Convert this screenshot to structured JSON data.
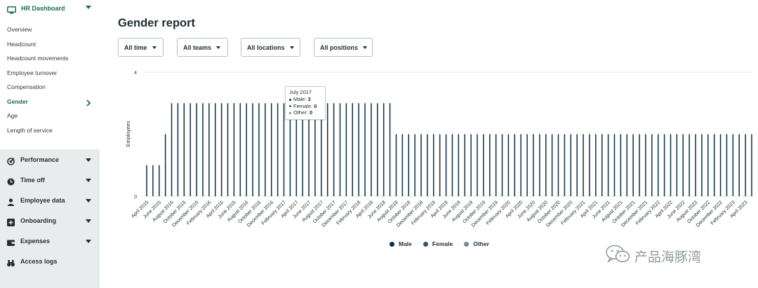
{
  "sidebar": {
    "header": {
      "label": "HR Dashboard",
      "icon": "monitor-icon"
    },
    "subitems": [
      {
        "label": "Overview",
        "active": false
      },
      {
        "label": "Headcount",
        "active": false
      },
      {
        "label": "Headcount movements",
        "active": false
      },
      {
        "label": "Employee turnover",
        "active": false
      },
      {
        "label": "Compensation",
        "active": false
      },
      {
        "label": "Gender",
        "active": true
      },
      {
        "label": "Age",
        "active": false
      },
      {
        "label": "Length of service",
        "active": false
      }
    ],
    "sections": [
      {
        "label": "Performance",
        "icon": "target-icon"
      },
      {
        "label": "Time off",
        "icon": "clock-icon"
      },
      {
        "label": "Employee data",
        "icon": "person-icon"
      },
      {
        "label": "Onboarding",
        "icon": "plus-square-icon"
      },
      {
        "label": "Expenses",
        "icon": "wallet-icon"
      },
      {
        "label": "Access logs",
        "icon": "binoculars-icon"
      }
    ]
  },
  "main": {
    "title": "Gender report",
    "filters": [
      "All time",
      "All teams",
      "All locations",
      "All positions"
    ]
  },
  "colors": {
    "male": "#0d2f3f",
    "female": "#2f5466",
    "other": "#6f8a93",
    "accent": "#1d6b53",
    "sidebar_panel": "#e9ecec"
  },
  "tooltip": {
    "title": "July 2017",
    "rows": [
      {
        "label": "Male:",
        "value": "3"
      },
      {
        "label": "Female:",
        "value": "0"
      },
      {
        "label": "Other:",
        "value": "0"
      }
    ]
  },
  "watermark": "产品海豚湾",
  "chart_data": {
    "type": "bar",
    "ylabel": "Employees",
    "xlabel": "",
    "ylim": [
      0,
      4
    ],
    "yticks": [
      0,
      4
    ],
    "grid": true,
    "legend_position": "bottom",
    "categories": [
      "Apr 2015",
      "May 2015",
      "Jun 2015",
      "Jul 2015",
      "Aug 2015",
      "Sep 2015",
      "Oct 2015",
      "Nov 2015",
      "Dec 2015",
      "Jan 2016",
      "Feb 2016",
      "Mar 2016",
      "Apr 2016",
      "May 2016",
      "Jun 2016",
      "Jul 2016",
      "Aug 2016",
      "Sep 2016",
      "Oct 2016",
      "Nov 2016",
      "Dec 2016",
      "Jan 2017",
      "Feb 2017",
      "Mar 2017",
      "Apr 2017",
      "May 2017",
      "Jun 2017",
      "Jul 2017",
      "Aug 2017",
      "Sep 2017",
      "Oct 2017",
      "Nov 2017",
      "Dec 2017",
      "Jan 2018",
      "Feb 2018",
      "Mar 2018",
      "Apr 2018",
      "May 2018",
      "Jun 2018",
      "Jul 2018",
      "Aug 2018",
      "Sep 2018",
      "Oct 2018",
      "Nov 2018",
      "Dec 2018",
      "Jan 2019",
      "Feb 2019",
      "Mar 2019",
      "Apr 2019",
      "May 2019",
      "Jun 2019",
      "Jul 2019",
      "Aug 2019",
      "Sep 2019",
      "Oct 2019",
      "Nov 2019",
      "Dec 2019",
      "Jan 2020",
      "Feb 2020",
      "Mar 2020",
      "Apr 2020",
      "May 2020",
      "Jun 2020",
      "Jul 2020",
      "Aug 2020",
      "Sep 2020",
      "Oct 2020",
      "Nov 2020",
      "Dec 2020",
      "Jan 2021",
      "Feb 2021",
      "Mar 2021",
      "Apr 2021",
      "May 2021",
      "Jun 2021",
      "Jul 2021",
      "Aug 2021",
      "Sep 2021",
      "Oct 2021",
      "Nov 2021",
      "Dec 2021",
      "Jan 2022",
      "Feb 2022",
      "Mar 2022",
      "Apr 2022",
      "May 2022",
      "Jun 2022",
      "Jul 2022",
      "Aug 2022",
      "Sep 2022",
      "Oct 2022",
      "Nov 2022",
      "Dec 2022",
      "Jan 2023",
      "Feb 2023",
      "Mar 2023",
      "Apr 2023",
      "May 2023"
    ],
    "tick_labels": [
      "April 2015",
      "June 2015",
      "August 2015",
      "October 2015",
      "December 2015",
      "February 2016",
      "April 2016",
      "June 2016",
      "August 2016",
      "October 2016",
      "December 2016",
      "February 2017",
      "April 2017",
      "June 2017",
      "August 2017",
      "October 2017",
      "December 2017",
      "February 2018",
      "April 2018",
      "June 2018",
      "August 2018",
      "October 2018",
      "December 2018",
      "February 2019",
      "April 2019",
      "June 2019",
      "August 2019",
      "October 2019",
      "December 2019",
      "February 2020",
      "April 2020",
      "June 2020",
      "August 2020",
      "October 2020",
      "December 2020",
      "February 2021",
      "April 2021",
      "June 2021",
      "August 2021",
      "October 2021",
      "December 2021",
      "February 2022",
      "April 2022",
      "June 2022",
      "August 2022",
      "October 2022",
      "December 2022",
      "February 2023",
      "April 2023"
    ],
    "series": [
      {
        "name": "Male",
        "values": [
          1,
          1,
          1,
          2,
          3,
          3,
          3,
          3,
          3,
          3,
          3,
          3,
          3,
          3,
          3,
          3,
          3,
          3,
          3,
          3,
          3,
          3,
          3,
          3,
          3,
          3,
          3,
          3,
          3,
          3,
          3,
          3,
          3,
          3,
          3,
          3,
          3,
          3,
          3,
          3,
          2,
          2,
          2,
          2,
          2,
          2,
          2,
          2,
          2,
          2,
          2,
          2,
          2,
          2,
          2,
          2,
          2,
          2,
          2,
          2,
          2,
          2,
          2,
          2,
          2,
          2,
          2,
          2,
          2,
          2,
          2,
          2,
          2,
          2,
          2,
          2,
          2,
          2,
          2,
          2,
          2,
          2,
          2,
          2,
          2,
          2,
          2,
          2,
          2,
          2,
          2,
          2,
          2,
          2,
          2,
          2,
          2,
          2
        ]
      },
      {
        "name": "Female",
        "values": [
          0,
          0,
          0,
          0,
          0,
          0,
          0,
          0,
          0,
          0,
          0,
          0,
          0,
          0,
          0,
          0,
          0,
          0,
          0,
          0,
          0,
          0,
          0,
          0,
          0,
          0,
          0,
          0,
          0,
          0,
          0,
          0,
          0,
          0,
          0,
          0,
          0,
          0,
          0,
          0,
          0,
          0,
          0,
          0,
          0,
          0,
          0,
          0,
          0,
          0,
          0,
          0,
          0,
          0,
          0,
          0,
          0,
          0,
          0,
          0,
          0,
          0,
          0,
          0,
          0,
          0,
          0,
          0,
          0,
          0,
          0,
          0,
          0,
          0,
          0,
          0,
          0,
          0,
          0,
          0,
          0,
          0,
          0,
          0,
          0,
          0,
          0,
          0,
          0,
          0,
          0,
          0,
          0,
          0,
          0,
          0,
          0,
          0
        ]
      },
      {
        "name": "Other",
        "values": [
          0,
          0,
          0,
          0,
          0,
          0,
          0,
          0,
          0,
          0,
          0,
          0,
          0,
          0,
          0,
          0,
          0,
          0,
          0,
          0,
          0,
          0,
          0,
          0,
          0,
          0,
          0,
          0,
          0,
          0,
          0,
          0,
          0,
          0,
          0,
          0,
          0,
          0,
          0,
          0,
          0,
          0,
          0,
          0,
          0,
          0,
          0,
          0,
          0,
          0,
          0,
          0,
          0,
          0,
          0,
          0,
          0,
          0,
          0,
          0,
          0,
          0,
          0,
          0,
          0,
          0,
          0,
          0,
          0,
          0,
          0,
          0,
          0,
          0,
          0,
          0,
          0,
          0,
          0,
          0,
          0,
          0,
          0,
          0,
          0,
          0,
          0,
          0,
          0,
          0,
          0,
          0,
          0,
          0,
          0,
          0,
          0,
          0
        ]
      }
    ]
  }
}
